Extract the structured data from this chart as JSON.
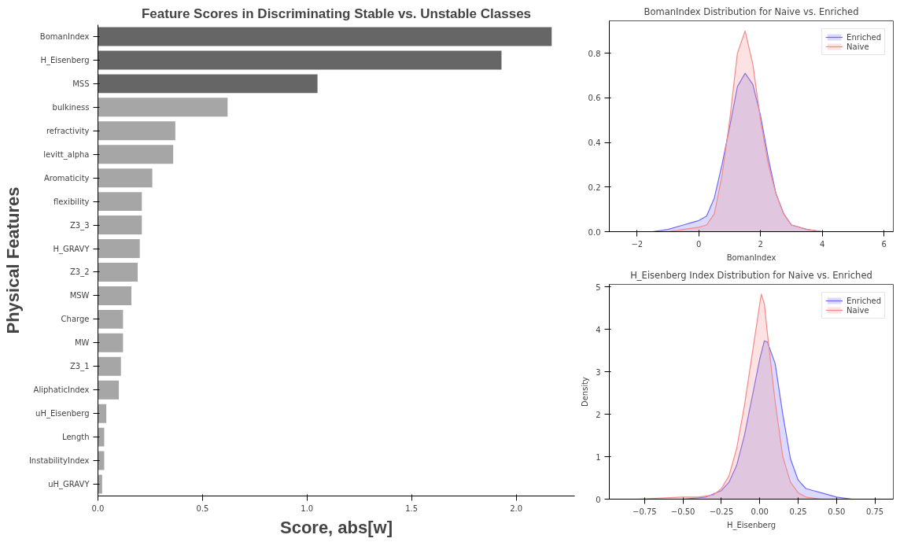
{
  "chart_data": [
    {
      "type": "bar",
      "orientation": "horizontal",
      "title": "Feature Scores in Discriminating Stable vs. Unstable Classes",
      "xlabel": "Score, abs[w]",
      "ylabel": "Physical Features",
      "grid": false,
      "categories": [
        "BomanIndex",
        "H_Eisenberg",
        "MSS",
        "bulkiness",
        "refractivity",
        "levitt_alpha",
        "Aromaticity",
        "flexibility",
        "Z3_3",
        "H_GRAVY",
        "Z3_2",
        "MSW",
        "Charge",
        "MW",
        "Z3_1",
        "AliphaticIndex",
        "uH_Eisenberg",
        "Length",
        "InstabilityIndex",
        "uH_GRAVY"
      ],
      "values": [
        2.17,
        1.93,
        1.05,
        0.62,
        0.37,
        0.36,
        0.26,
        0.21,
        0.21,
        0.2,
        0.19,
        0.16,
        0.12,
        0.12,
        0.11,
        0.1,
        0.04,
        0.03,
        0.03,
        0.02
      ],
      "colors": [
        "#666666",
        "#666666",
        "#666666",
        "#a6a6a6",
        "#a6a6a6",
        "#a6a6a6",
        "#a6a6a6",
        "#a6a6a6",
        "#a6a6a6",
        "#a6a6a6",
        "#a6a6a6",
        "#a6a6a6",
        "#a6a6a6",
        "#a6a6a6",
        "#a6a6a6",
        "#a6a6a6",
        "#a6a6a6",
        "#a6a6a6",
        "#a6a6a6",
        "#a6a6a6"
      ],
      "xlim": [
        0,
        2.28
      ],
      "xticks": [
        {
          "value": 0,
          "label": "0.0"
        },
        {
          "value": 0.5,
          "label": "0.5"
        },
        {
          "value": 1,
          "label": "1.0"
        },
        {
          "value": 1.5,
          "label": "1.5"
        },
        {
          "value": 2,
          "label": "2.0"
        }
      ]
    },
    {
      "type": "area",
      "title": "BomanIndex Distribution for Naive vs. Enriched",
      "xlabel": "BomanIndex",
      "grid": false,
      "legend": "top right",
      "xlim": [
        -2.9,
        6.3
      ],
      "ylim": [
        0,
        0.945
      ],
      "xticks": [
        {
          "value": -2,
          "label": "−2"
        },
        0,
        2,
        4,
        6
      ],
      "yticks": [
        {
          "value": 0,
          "label": "0.0"
        },
        {
          "value": 0.2,
          "label": "0.2"
        },
        {
          "value": 0.4,
          "label": "0.4"
        },
        {
          "value": 0.6,
          "label": "0.6"
        },
        {
          "value": 0.8,
          "label": "0.8"
        }
      ],
      "series": [
        {
          "name": "Enriched",
          "color": "#6f6af5",
          "x": [
            -2.5,
            -1.5,
            -1,
            -0.5,
            -0.25,
            0,
            0.25,
            0.5,
            0.75,
            1,
            1.25,
            1.5,
            1.75,
            2,
            2.25,
            2.5,
            2.75,
            3,
            3.5,
            4,
            5
          ],
          "values": [
            0,
            0,
            0.01,
            0.03,
            0.04,
            0.05,
            0.07,
            0.15,
            0.3,
            0.47,
            0.65,
            0.71,
            0.66,
            0.52,
            0.33,
            0.17,
            0.08,
            0.03,
            0.01,
            0,
            0
          ]
        },
        {
          "name": "Naive",
          "color": "#f58a8a",
          "x": [
            -1.5,
            -1,
            -0.5,
            0,
            0.25,
            0.5,
            0.75,
            1,
            1.25,
            1.5,
            1.75,
            2,
            2.25,
            2.5,
            2.75,
            3,
            3.5,
            4,
            5
          ],
          "values": [
            0,
            0,
            0.01,
            0.02,
            0.03,
            0.08,
            0.25,
            0.5,
            0.8,
            0.9,
            0.75,
            0.5,
            0.3,
            0.17,
            0.08,
            0.03,
            0.01,
            0,
            0
          ]
        }
      ]
    },
    {
      "type": "area",
      "title": "H_Eisenberg Index Distribution for Naive vs. Enriched",
      "xlabel": "H_Eisenberg",
      "ylabel": "Density",
      "grid": false,
      "legend": "top right",
      "xlim": [
        -0.98,
        0.87
      ],
      "ylim": [
        0,
        5.06
      ],
      "xticks": [
        {
          "value": -0.75,
          "label": "−0.75"
        },
        {
          "value": -0.5,
          "label": "−0.50"
        },
        {
          "value": -0.25,
          "label": "−0.25"
        },
        {
          "value": 0,
          "label": "0.00"
        },
        {
          "value": 0.25,
          "label": "0.25"
        },
        {
          "value": 0.5,
          "label": "0.50"
        },
        {
          "value": 0.75,
          "label": "0.75"
        }
      ],
      "yticks": [
        0,
        1,
        2,
        3,
        4,
        5
      ],
      "series": [
        {
          "name": "Enriched",
          "color": "#6f6af5",
          "x": [
            -0.8,
            -0.5,
            -0.35,
            -0.25,
            -0.2,
            -0.15,
            -0.1,
            -0.05,
            0,
            0.03,
            0.05,
            0.1,
            0.15,
            0.2,
            0.25,
            0.3,
            0.35,
            0.4,
            0.45,
            0.5,
            0.6,
            0.75
          ],
          "values": [
            0,
            0,
            0.05,
            0.2,
            0.4,
            0.8,
            1.5,
            2.4,
            3.3,
            3.73,
            3.7,
            3.2,
            2.0,
            0.95,
            0.45,
            0.25,
            0.2,
            0.15,
            0.1,
            0.05,
            0,
            0
          ]
        },
        {
          "name": "Naive",
          "color": "#f58a8a",
          "x": [
            -0.8,
            -0.5,
            -0.4,
            -0.3,
            -0.25,
            -0.2,
            -0.15,
            -0.1,
            -0.05,
            0,
            0.01,
            0.03,
            0.05,
            0.1,
            0.15,
            0.2,
            0.25,
            0.3,
            0.4,
            0.5
          ],
          "values": [
            0,
            0.05,
            0.05,
            0.1,
            0.25,
            0.55,
            1.2,
            2.2,
            3.4,
            4.6,
            4.83,
            4.6,
            3.9,
            2.3,
            1.0,
            0.4,
            0.15,
            0.05,
            0,
            0
          ]
        }
      ]
    }
  ]
}
